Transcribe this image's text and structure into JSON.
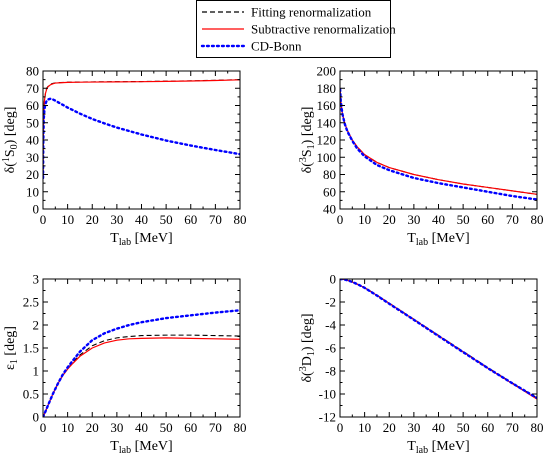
{
  "legend": {
    "entries": [
      {
        "label": "Fitting renormalization",
        "color": "#000000",
        "dash": "dashed"
      },
      {
        "label": "Subtractive renormalization",
        "color": "#ff0000",
        "dash": "solid"
      },
      {
        "label": "CD-Bonn",
        "color": "#0000ff",
        "dash": "dotted"
      }
    ]
  },
  "chart_data": [
    {
      "type": "line",
      "id": "1S0",
      "ylabel": {
        "pre": "δ(",
        "sup": "1",
        "base": "S",
        "sub": "0",
        "post": ") [deg]"
      },
      "xlabel": {
        "base": "T",
        "sub": "lab",
        "post": " [MeV]"
      },
      "xlim": [
        0,
        80
      ],
      "ylim": [
        0,
        80
      ],
      "xticks": [
        0,
        10,
        20,
        30,
        40,
        50,
        60,
        70,
        80
      ],
      "yticks": [
        0,
        10,
        20,
        30,
        40,
        50,
        60,
        70,
        80
      ],
      "series": [
        {
          "name": "Fitting renormalization",
          "x": [
            0.02,
            0.1,
            0.3,
            0.6,
            1,
            1.5,
            2,
            3,
            4,
            5,
            7,
            10,
            15,
            20,
            30,
            40,
            50,
            60,
            70,
            80
          ],
          "y": [
            18,
            38,
            55,
            63,
            67,
            70,
            71,
            72.3,
            72.8,
            73.1,
            73.3,
            73.5,
            73.6,
            73.7,
            73.8,
            73.9,
            74.1,
            74.3,
            74.6,
            75
          ]
        },
        {
          "name": "Subtractive renormalization",
          "x": [
            0.02,
            0.1,
            0.3,
            0.6,
            1,
            1.5,
            2,
            3,
            4,
            5,
            7,
            10,
            15,
            20,
            30,
            40,
            50,
            60,
            70,
            80
          ],
          "y": [
            18,
            38,
            55,
            63,
            67,
            69.5,
            70.8,
            72,
            72.6,
            73,
            73.2,
            73.4,
            73.5,
            73.6,
            73.7,
            73.8,
            74,
            74.2,
            74.5,
            74.9
          ]
        },
        {
          "name": "CD-Bonn",
          "x": [
            0.02,
            0.1,
            0.3,
            0.6,
            1,
            1.5,
            2,
            3,
            4,
            5,
            7,
            10,
            15,
            20,
            25,
            30,
            40,
            50,
            60,
            70,
            80
          ],
          "y": [
            18,
            38,
            52,
            58,
            61,
            62.8,
            63.5,
            63.9,
            63.5,
            62.8,
            61.2,
            58.8,
            55.3,
            52.2,
            49.6,
            47.2,
            43.2,
            39.7,
            36.8,
            34.2,
            31.8
          ]
        }
      ]
    },
    {
      "type": "line",
      "id": "3S1",
      "ylabel": {
        "pre": "δ(",
        "sup": "3",
        "base": "S",
        "sub": "1",
        "post": ") [deg]"
      },
      "xlabel": {
        "base": "T",
        "sub": "lab",
        "post": " [MeV]"
      },
      "xlim": [
        0,
        80
      ],
      "ylim": [
        40,
        200
      ],
      "xticks": [
        0,
        10,
        20,
        30,
        40,
        50,
        60,
        70,
        80
      ],
      "yticks": [
        40,
        60,
        80,
        100,
        120,
        140,
        160,
        180,
        200
      ],
      "series": [
        {
          "name": "Fitting renormalization",
          "x": [
            0.05,
            0.3,
            0.7,
            1,
            2,
            3,
            5,
            7,
            10,
            15,
            20,
            30,
            40,
            50,
            60,
            70,
            80
          ],
          "y": [
            179,
            166,
            156,
            150,
            139,
            131,
            120,
            112,
            103,
            94,
            88,
            80,
            74,
            69,
            65,
            61,
            57
          ]
        },
        {
          "name": "Subtractive renormalization",
          "x": [
            0.05,
            0.3,
            0.7,
            1,
            2,
            3,
            5,
            7,
            10,
            15,
            20,
            30,
            40,
            50,
            60,
            70,
            80
          ],
          "y": [
            179,
            166,
            156,
            150,
            139,
            131,
            120,
            112,
            103,
            94,
            88,
            80,
            74,
            69,
            65,
            61,
            57
          ]
        },
        {
          "name": "CD-Bonn",
          "x": [
            0.05,
            0.3,
            0.7,
            1,
            2,
            3,
            5,
            7,
            10,
            15,
            20,
            30,
            40,
            50,
            60,
            70,
            80
          ],
          "y": [
            179,
            166,
            156,
            150,
            138,
            130,
            119,
            110,
            101,
            91,
            85,
            76,
            70,
            65,
            60,
            55,
            51
          ]
        }
      ]
    },
    {
      "type": "line",
      "id": "eps1",
      "ylabel": {
        "pre": "",
        "sup": "",
        "base": "ε",
        "sub": "1",
        "post": " [deg]"
      },
      "xlabel": {
        "base": "T",
        "sub": "lab",
        "post": " [MeV]"
      },
      "xlim": [
        0,
        80
      ],
      "ylim": [
        0,
        3
      ],
      "xticks": [
        0,
        10,
        20,
        30,
        40,
        50,
        60,
        70,
        80
      ],
      "yticks": [
        0,
        0.5,
        1,
        1.5,
        2,
        2.5,
        3
      ],
      "yticklabels": [
        "0",
        "0.5",
        "1",
        "1.5",
        "2",
        "2.5",
        "3"
      ],
      "series": [
        {
          "name": "Fitting renormalization",
          "x": [
            0,
            1,
            2,
            4,
            6,
            8,
            10,
            12,
            15,
            20,
            25,
            30,
            35,
            40,
            50,
            60,
            70,
            80
          ],
          "y": [
            0,
            0.12,
            0.25,
            0.5,
            0.72,
            0.9,
            1.05,
            1.18,
            1.35,
            1.55,
            1.66,
            1.72,
            1.75,
            1.77,
            1.78,
            1.78,
            1.77,
            1.76
          ]
        },
        {
          "name": "Subtractive renormalization",
          "x": [
            0,
            1,
            2,
            4,
            6,
            8,
            10,
            12,
            15,
            20,
            25,
            30,
            35,
            40,
            50,
            60,
            70,
            80
          ],
          "y": [
            0,
            0.12,
            0.25,
            0.5,
            0.72,
            0.9,
            1.04,
            1.16,
            1.32,
            1.5,
            1.61,
            1.67,
            1.7,
            1.71,
            1.72,
            1.71,
            1.7,
            1.69
          ]
        },
        {
          "name": "CD-Bonn",
          "x": [
            0,
            1,
            2,
            4,
            6,
            8,
            10,
            12,
            15,
            20,
            25,
            30,
            35,
            40,
            50,
            60,
            70,
            80
          ],
          "y": [
            0,
            0.12,
            0.25,
            0.5,
            0.72,
            0.92,
            1.08,
            1.22,
            1.42,
            1.67,
            1.82,
            1.92,
            2.0,
            2.06,
            2.15,
            2.21,
            2.27,
            2.32
          ]
        }
      ]
    },
    {
      "type": "line",
      "id": "3D1",
      "ylabel": {
        "pre": "δ(",
        "sup": "3",
        "base": "D",
        "sub": "1",
        "post": ") [deg]"
      },
      "xlabel": {
        "base": "T",
        "sub": "lab",
        "post": " [MeV]"
      },
      "xlim": [
        0,
        80
      ],
      "ylim": [
        -12,
        0
      ],
      "xticks": [
        0,
        10,
        20,
        30,
        40,
        50,
        60,
        70,
        80
      ],
      "yticks": [
        -12,
        -10,
        -8,
        -6,
        -4,
        -2,
        0
      ],
      "series": [
        {
          "name": "Fitting renormalization",
          "x": [
            0,
            2,
            4,
            6,
            8,
            10,
            15,
            20,
            30,
            40,
            50,
            60,
            70,
            80
          ],
          "y": [
            0,
            -0.05,
            -0.18,
            -0.35,
            -0.55,
            -0.75,
            -1.4,
            -2.1,
            -3.5,
            -4.9,
            -6.3,
            -7.7,
            -9.05,
            -10.35
          ]
        },
        {
          "name": "Subtractive renormalization",
          "x": [
            0,
            2,
            4,
            6,
            8,
            10,
            15,
            20,
            30,
            40,
            50,
            60,
            70,
            80
          ],
          "y": [
            0,
            -0.05,
            -0.18,
            -0.35,
            -0.55,
            -0.76,
            -1.42,
            -2.12,
            -3.52,
            -4.93,
            -6.34,
            -7.75,
            -9.1,
            -10.45
          ]
        },
        {
          "name": "CD-Bonn",
          "x": [
            0,
            2,
            4,
            6,
            8,
            10,
            15,
            20,
            30,
            40,
            50,
            60,
            70,
            80
          ],
          "y": [
            0,
            -0.05,
            -0.18,
            -0.35,
            -0.55,
            -0.77,
            -1.44,
            -2.15,
            -3.55,
            -4.96,
            -6.36,
            -7.75,
            -9.07,
            -10.35
          ]
        }
      ]
    }
  ]
}
